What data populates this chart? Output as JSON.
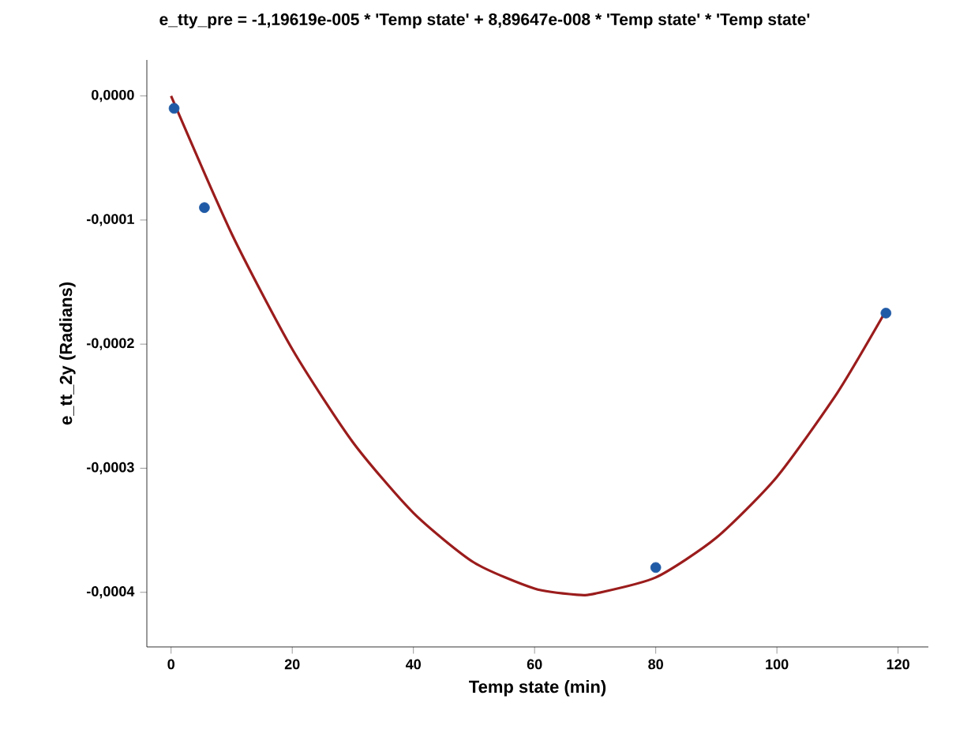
{
  "chart_data": {
    "type": "scatter",
    "title": "e_tty_pre = -1,19619e-005 * 'Temp state' + 8,89647e-008 * 'Temp state' * 'Temp state'",
    "xlabel": "Temp state (min)",
    "ylabel": "e_tt_2y (Radians)",
    "series": [
      {
        "color": "#1f5aa6",
        "marker": "circle",
        "x": [
          0.5,
          5.5,
          80,
          118
        ],
        "values": [
          -1e-05,
          -9e-05,
          -0.00038,
          -0.000175
        ]
      },
      {
        "type": "line",
        "color": "#9b1c1c",
        "marker": "none",
        "x": [
          0,
          10,
          20,
          30,
          40,
          50,
          60,
          67,
          70,
          80,
          90,
          100,
          110,
          118
        ],
        "values": [
          0,
          -0.000111,
          -0.000204,
          -0.000279,
          -0.000336,
          -0.000376,
          -0.000397,
          -0.000402,
          -0.000401,
          -0.000388,
          -0.000356,
          -0.000307,
          -0.000239,
          -0.000173
        ]
      }
    ],
    "xlim": [
      -4,
      125
    ],
    "ylim": [
      -0.000444,
      2.9e-05
    ],
    "xticks": [
      0,
      20,
      40,
      60,
      80,
      100,
      120
    ],
    "yticks": [
      {
        "value": 0,
        "label": "0,0000"
      },
      {
        "value": -0.0001,
        "label": "-0,0001"
      },
      {
        "value": -0.0002,
        "label": "-0,0002"
      },
      {
        "value": -0.0003,
        "label": "-0,0003"
      },
      {
        "value": -0.0004,
        "label": "-0,0004"
      }
    ],
    "grid": false
  }
}
